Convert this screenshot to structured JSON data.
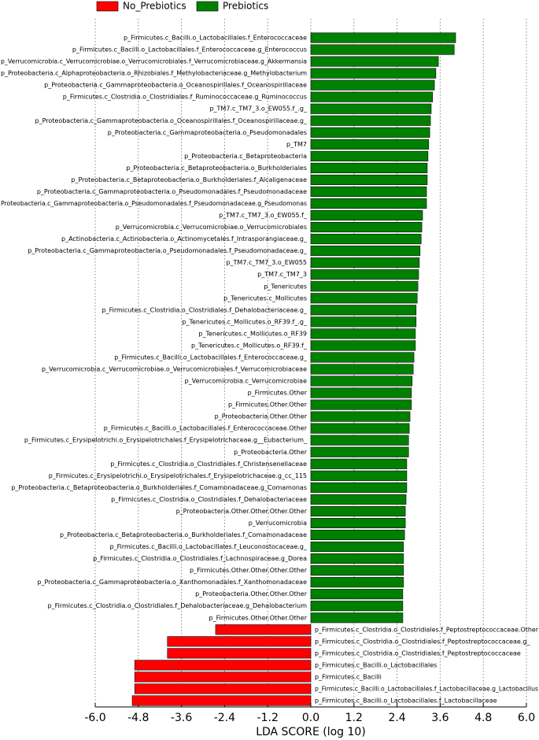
{
  "chart_data": {
    "type": "lda-bar",
    "xlabel": "LDA SCORE (log 10)",
    "categories": [
      "p_Firmicutes.c_Bacilli.o_Lactobacillales.f_Enterococcaceae",
      "p_Firmicutes.c_Bacilli.o_Lactobacillales.f_Enterococcaceae.g_Enterococcus",
      "p_Verrucomicrobia.c_Verrucomicrobiae.o_Verrucomicrobiales.f_Verrucomicrobiaceae.g_Akkermansia",
      "p_Proteobacteria.c_Alphaproteobacteria.o_Rhizobiales.f_Methylobacteriaceae.g_Methylobacterium",
      "p_Proteobacteria.c_Gammaproteobacteria.o_Oceanospirillales.f_Oceanospirillaceae",
      "p_Firmicutes.c_Clostridia.o_Clostridiales.f_Ruminococcaceae.g_Ruminococcus",
      "p_TM7.c_TM7_3.o_EW055.f_.g_",
      "p_Proteobacteria.c_Gammaproteobacteria.o_Oceanospirillales.f_Oceanospirillaceae.g_",
      "p_Proteobacteria.c_Gammaproteobacteria.o_Pseudomonadales",
      "p_TM7",
      "p_Proteobacteria.c_Betaproteobacteria",
      "p_Proteobacteria.c_Betaproteobacteria.o_Burkholderiales",
      "p_Proteobacteria.c_Betaproteobacteria.o_Burkholderiales.f_Alcaligenaceae",
      "p_Proteobacteria.c_Gammaproteobacteria.o_Pseudomonadales.f_Pseudomonadaceae",
      "Proteobacteria.c_Gammaproteobacteria.o_Pseudomonadales.f_Pseudomonadaceae.g_Pseudomonas",
      "p_TM7.c_TM7_3.o_EW055.f_",
      "p_Verrucomicrobia.c_Verrucomicrobiae.o_Verrucomicrobiales",
      "p_Actinobacteria.c_Actinobacteria.o_Actinomycetales.f_Intrasporangiaceae.g_",
      "p_Proteobacteria.c_Gammaproteobacteria.o_Pseudomonadales.f_Pseudomonadaceae.g_",
      "p_TM7.c_TM7_3.o_EW055",
      "p_TM7.c_TM7_3",
      "p_Tenericutes",
      "p_Tenericutes.c_Mollicutes",
      "p_Firmicutes.c_Clostridia.o_Clostridiales.f_Dehalobacteriaceae.g_",
      "p_Tenericutes.c_Mollicutes.o_RF39.f_.g_",
      "p_Tenericutes.c_Mollicutes.o_RF39",
      "p_Tenericutes.c_Mollicutes.o_RF39.f_",
      "p_Firmicutes.c_Bacilli.o_Lactobacillales.f_Enterococcaceae.g_",
      "p_Verrucomicrobia.c_Verrucomicrobiae.o_Verrucomicrobiales.f_Verrucomicrobiaceae",
      "p_Verrucomicrobia.c_Verrucomicrobiae",
      "p_Firmicutes.Other",
      "p_Firmicutes.Other.Other",
      "p_Proteobacteria.Other.Other",
      "p_Firmicutes.c_Bacilli.o_Lactobacillales.f_Enterococcaceae.Other",
      "p_Firmicutes.c_Erysipelotrichi.o_Erysipelotrichales.f_Erysipelotrichaceae.g__Eubacterium_",
      "p_Proteobacteria.Other",
      "p_Firmicutes.c_Clostridia.o_Clostridiales.f_Christensenellaceae",
      "p_Firmicutes.c_Erysipelotrichi.o_Erysipelotrichales.f_Erysipelotrichaceae.g_cc_115",
      "p_Proteobacteria.c_Betaproteobacteria.o_Burkholderiales.f_Comamonadaceae.g_Comamonas",
      "p_Firmicutes.c_Clostridia.o_Clostridiales.f_Dehalobacteriaceae",
      "p_Proteobacteria.Other.Other.Other.Other",
      "p_Verrucomicrobia",
      "p_Proteobacteria.c_Betaproteobacteria.o_Burkholderiales.f_Comamonadaceae",
      "p_Firmicutes.c_Bacilli.o_Lactobacillales.f_Leuconostocaceae.g_",
      "p_Firmicutes.c_Clostridia.o_Clostridiales.f_Lachnospiraceae.g_Dorea",
      "p_Firmicutes.Other.Other.Other.Other",
      "p_Proteobacteria.c_Gammaproteobacteria.o_Xanthomonadales.f_Xanthomonadaceae",
      "p_Proteobacteria.Other.Other.Other",
      "p_Firmicutes.c_Clostridia.o_Clostridiales.f_Dehalobacteriaceae.g_Dehalobacterium",
      "p_Firmicutes.Other.Other.Other",
      "p_Firmicutes.c_Clostridia.o_Clostridiales.f_Peptostreptococcaceae.Other",
      "p_Firmicutes.c_Clostridia.o_Clostridiales.f_Peptostreptococcaceae.g_",
      "p_Firmicutes.c_Clostridia.o_Clostridiales.f_Peptostreptococcaceae",
      "p_Firmicutes.c_Bacilli.o_Lactobacillales",
      "p_Firmicutes.c_Bacilli",
      "p_Firmicutes.c_Bacilli.o_Lactobacillales.f_Lactobacillaceae.g_Lactobacillus",
      "p_Firmicutes.c_Bacilli.o_Lactobacillales.f_Lactobacillaceae"
    ],
    "series": [
      {
        "name": "No_Prebiotics",
        "color": "#ff0000",
        "values": [
          null,
          null,
          null,
          null,
          null,
          null,
          null,
          null,
          null,
          null,
          null,
          null,
          null,
          null,
          null,
          null,
          null,
          null,
          null,
          null,
          null,
          null,
          null,
          null,
          null,
          null,
          null,
          null,
          null,
          null,
          null,
          null,
          null,
          null,
          null,
          null,
          null,
          null,
          null,
          null,
          null,
          null,
          null,
          null,
          null,
          null,
          null,
          null,
          null,
          null,
          -2.65,
          -3.99,
          -3.99,
          -4.9,
          -4.9,
          -4.9,
          -4.97
        ]
      },
      {
        "name": "Prebiotics",
        "color": "#008000",
        "values": [
          4.03,
          3.99,
          3.55,
          3.48,
          3.44,
          3.39,
          3.35,
          3.33,
          3.31,
          3.28,
          3.26,
          3.24,
          3.24,
          3.22,
          3.22,
          3.11,
          3.09,
          3.07,
          3.04,
          3.02,
          3.0,
          2.98,
          2.96,
          2.93,
          2.93,
          2.91,
          2.91,
          2.87,
          2.85,
          2.82,
          2.8,
          2.8,
          2.76,
          2.74,
          2.72,
          2.72,
          2.67,
          2.67,
          2.67,
          2.65,
          2.63,
          2.63,
          2.61,
          2.58,
          2.58,
          2.58,
          2.58,
          2.56,
          2.56,
          2.56,
          null,
          null,
          null,
          null,
          null,
          null,
          null
        ]
      }
    ],
    "xlim": [
      -6,
      6
    ],
    "xticks": [
      {
        "value": -6,
        "label": "-6.0"
      },
      -4.8,
      -3.6,
      -2.4,
      -1.2,
      {
        "value": 0,
        "label": "0.0"
      },
      1.2,
      2.4,
      3.6,
      4.8,
      {
        "value": 6,
        "label": "6.0"
      }
    ],
    "grid": true
  }
}
